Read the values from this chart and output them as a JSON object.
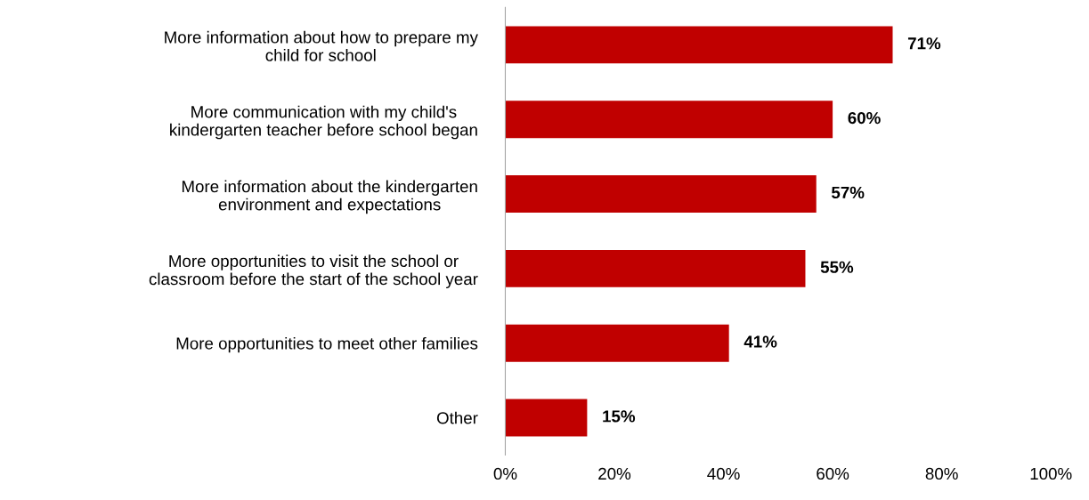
{
  "chart_data": {
    "type": "bar",
    "orientation": "horizontal",
    "categories": [
      "More information about how to prepare my\nchild for school",
      "More communication with my child's\nkindergarten teacher before school began",
      "More information about the kindergarten\nenvironment and expectations",
      "More opportunities to visit the school or\nclassroom before the start of the school year",
      "More opportunities to meet other families",
      "Other"
    ],
    "values": [
      71,
      60,
      57,
      55,
      41,
      15
    ],
    "value_labels": [
      "71%",
      "60%",
      "57%",
      "55%",
      "41%",
      "15%"
    ],
    "color": "#c00000",
    "xlim": [
      0,
      100
    ],
    "xticks": [
      {
        "value": 0,
        "label": "0%"
      },
      {
        "value": 20,
        "label": "20%"
      },
      {
        "value": 40,
        "label": "40%"
      },
      {
        "value": 60,
        "label": "60%"
      },
      {
        "value": 80,
        "label": "80%"
      },
      {
        "value": 100,
        "label": "100%"
      }
    ],
    "grid": false,
    "legend": false
  }
}
